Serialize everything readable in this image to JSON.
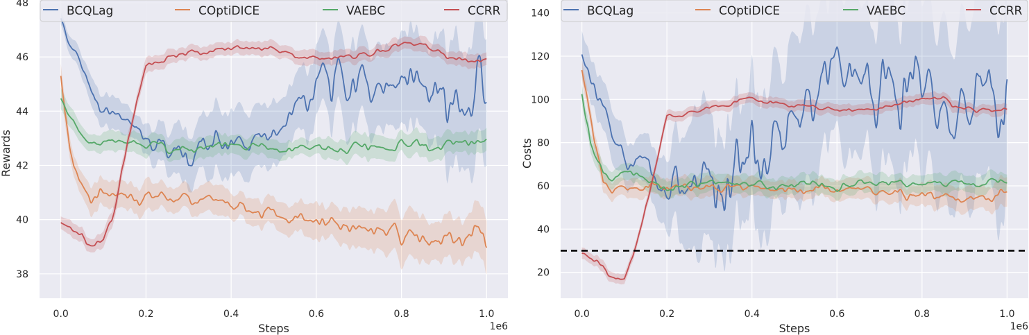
{
  "chart_data": [
    {
      "type": "line",
      "xlabel": "Steps",
      "ylabel": "Rewards",
      "x_offset_label": "1e6",
      "xlim": [
        -0.05,
        1.05
      ],
      "ylim": [
        37.1,
        48.1
      ],
      "xticks": [
        0.0,
        0.2,
        0.4,
        0.6,
        0.8,
        1.0
      ],
      "xtick_labels": [
        "0.0",
        "0.2",
        "0.4",
        "0.6",
        "0.8",
        "1.0"
      ],
      "yticks": [
        38,
        40,
        42,
        44,
        46,
        48
      ],
      "ytick_labels": [
        "38",
        "40",
        "42",
        "44",
        "46",
        "48"
      ],
      "grid": true,
      "legend_position": "top",
      "series": [
        {
          "name": "BCQLag",
          "color": "#4c72b0",
          "x": [
            0.0,
            0.02,
            0.04,
            0.06,
            0.08,
            0.1,
            0.12,
            0.14,
            0.16,
            0.2,
            0.25,
            0.3,
            0.35,
            0.4,
            0.45,
            0.5,
            0.55,
            0.58,
            0.6,
            0.65,
            0.7,
            0.75,
            0.8,
            0.85,
            0.9,
            0.95,
            1.0
          ],
          "y": [
            47.4,
            46.5,
            45.9,
            45.2,
            44.3,
            43.9,
            43.7,
            43.7,
            43.5,
            42.9,
            42.6,
            42.5,
            42.8,
            43.0,
            42.9,
            43.3,
            44.4,
            44.8,
            45.2,
            45.3,
            45.2,
            45.0,
            45.0,
            45.1,
            44.8,
            44.7,
            44.8
          ],
          "band": [
            0.3,
            0.4,
            0.5,
            0.6,
            0.7,
            0.7,
            0.7,
            0.6,
            0.6,
            0.6,
            0.9,
            1.1,
            1.3,
            1.3,
            1.4,
            1.4,
            1.4,
            1.6,
            1.8,
            1.8,
            1.8,
            1.7,
            1.8,
            2.0,
            2.5,
            2.8,
            3.2
          ]
        },
        {
          "name": "COptiDICE",
          "color": "#dd8452",
          "x": [
            0.0,
            0.01,
            0.02,
            0.03,
            0.05,
            0.07,
            0.1,
            0.15,
            0.2,
            0.25,
            0.3,
            0.35,
            0.4,
            0.45,
            0.5,
            0.55,
            0.6,
            0.65,
            0.7,
            0.75,
            0.8,
            0.85,
            0.9,
            0.95,
            1.0
          ],
          "y": [
            45.5,
            44.0,
            42.8,
            41.9,
            41.2,
            40.7,
            40.9,
            40.8,
            40.8,
            40.9,
            40.8,
            40.7,
            40.5,
            40.4,
            40.2,
            40.0,
            39.9,
            39.9,
            39.8,
            39.6,
            39.4,
            39.5,
            39.3,
            39.4,
            39.5
          ],
          "band": [
            0.5,
            0.5,
            0.5,
            0.5,
            0.5,
            0.6,
            0.7,
            0.7,
            0.6,
            0.6,
            0.6,
            0.6,
            0.6,
            0.6,
            0.7,
            0.7,
            0.7,
            0.8,
            0.8,
            0.9,
            1.0,
            0.9,
            1.0,
            1.0,
            1.0
          ]
        },
        {
          "name": "VAEBC",
          "color": "#55a868",
          "x": [
            0.0,
            0.02,
            0.04,
            0.06,
            0.08,
            0.1,
            0.15,
            0.2,
            0.3,
            0.4,
            0.5,
            0.6,
            0.7,
            0.8,
            0.9,
            1.0
          ],
          "y": [
            44.5,
            43.8,
            43.3,
            43.0,
            42.9,
            42.9,
            42.9,
            42.7,
            42.6,
            42.7,
            42.6,
            42.6,
            42.7,
            42.7,
            42.7,
            42.9
          ],
          "band": [
            0.4,
            0.4,
            0.4,
            0.4,
            0.4,
            0.4,
            0.4,
            0.4,
            0.4,
            0.4,
            0.4,
            0.4,
            0.5,
            0.5,
            0.5,
            0.5
          ]
        },
        {
          "name": "CCRR",
          "color": "#c44e52",
          "x": [
            0.0,
            0.02,
            0.04,
            0.05,
            0.06,
            0.08,
            0.1,
            0.12,
            0.14,
            0.16,
            0.18,
            0.2,
            0.25,
            0.3,
            0.35,
            0.4,
            0.45,
            0.5,
            0.55,
            0.6,
            0.65,
            0.7,
            0.75,
            0.8,
            0.85,
            0.9,
            0.95,
            1.0
          ],
          "y": [
            40.0,
            39.7,
            39.6,
            39.5,
            39.1,
            39.1,
            39.2,
            40.0,
            41.5,
            43.0,
            44.5,
            45.6,
            45.9,
            46.1,
            46.2,
            46.4,
            46.4,
            46.3,
            46.0,
            45.9,
            46.0,
            46.1,
            46.2,
            46.4,
            46.5,
            46.0,
            45.9,
            45.9
          ],
          "band": [
            0.3,
            0.3,
            0.3,
            0.3,
            0.3,
            0.3,
            0.3,
            0.3,
            0.3,
            0.3,
            0.3,
            0.3,
            0.3,
            0.3,
            0.3,
            0.3,
            0.3,
            0.3,
            0.3,
            0.3,
            0.3,
            0.3,
            0.3,
            0.3,
            0.3,
            0.3,
            0.3,
            0.3
          ]
        }
      ]
    },
    {
      "type": "line",
      "xlabel": "Steps",
      "ylabel": "Costs",
      "x_offset_label": "1e6",
      "xlim": [
        -0.05,
        1.05
      ],
      "ylim": [
        8,
        146
      ],
      "xticks": [
        0.0,
        0.2,
        0.4,
        0.6,
        0.8,
        1.0
      ],
      "xtick_labels": [
        "0.0",
        "0.2",
        "0.4",
        "0.6",
        "0.8",
        "1.0"
      ],
      "yticks": [
        20,
        40,
        60,
        80,
        100,
        120,
        140
      ],
      "ytick_labels": [
        "20",
        "40",
        "60",
        "80",
        "100",
        "120",
        "140"
      ],
      "grid": true,
      "legend_position": "top",
      "threshold": {
        "y": 30,
        "style": "dashed",
        "color": "#000000"
      },
      "series": [
        {
          "name": "BCQLag",
          "color": "#4c72b0",
          "x": [
            0.0,
            0.02,
            0.04,
            0.06,
            0.08,
            0.1,
            0.12,
            0.15,
            0.2,
            0.25,
            0.3,
            0.35,
            0.4,
            0.45,
            0.5,
            0.55,
            0.6,
            0.65,
            0.7,
            0.75,
            0.8,
            0.85,
            0.9,
            0.95,
            1.0
          ],
          "y": [
            122,
            110,
            100,
            90,
            82,
            75,
            72,
            70,
            60,
            58,
            60,
            65,
            75,
            82,
            88,
            97,
            105,
            105,
            102,
            100,
            100,
            97,
            96,
            95,
            93
          ],
          "band": [
            12,
            12,
            12,
            12,
            12,
            12,
            12,
            12,
            20,
            35,
            40,
            35,
            35,
            38,
            40,
            42,
            42,
            42,
            42,
            42,
            45,
            45,
            47,
            48,
            50
          ]
        },
        {
          "name": "COptiDICE",
          "color": "#dd8452",
          "x": [
            0.0,
            0.01,
            0.02,
            0.03,
            0.05,
            0.07,
            0.1,
            0.15,
            0.2,
            0.3,
            0.4,
            0.5,
            0.6,
            0.7,
            0.8,
            0.9,
            1.0
          ],
          "y": [
            115,
            105,
            92,
            80,
            62,
            57,
            59,
            60,
            60,
            59,
            59,
            58,
            59,
            57,
            55,
            55,
            55
          ],
          "band": [
            5,
            5,
            5,
            5,
            5,
            5,
            5,
            5,
            5,
            5,
            5,
            5,
            5,
            5,
            6,
            7,
            8
          ]
        },
        {
          "name": "VAEBC",
          "color": "#55a868",
          "x": [
            0.0,
            0.01,
            0.02,
            0.03,
            0.05,
            0.07,
            0.1,
            0.15,
            0.2,
            0.3,
            0.4,
            0.5,
            0.6,
            0.7,
            0.8,
            0.9,
            1.0
          ],
          "y": [
            102,
            90,
            80,
            76,
            68,
            63,
            65,
            63,
            60,
            61,
            61,
            60,
            60,
            61,
            61,
            61,
            62
          ],
          "band": [
            5,
            5,
            5,
            5,
            5,
            5,
            5,
            5,
            5,
            5,
            5,
            5,
            5,
            5,
            5,
            5,
            5
          ]
        },
        {
          "name": "CCRR",
          "color": "#c44e52",
          "x": [
            0.0,
            0.02,
            0.04,
            0.05,
            0.06,
            0.08,
            0.1,
            0.12,
            0.14,
            0.16,
            0.18,
            0.2,
            0.25,
            0.3,
            0.35,
            0.4,
            0.5,
            0.6,
            0.7,
            0.8,
            0.85,
            0.9,
            1.0
          ],
          "y": [
            29,
            26,
            24,
            22,
            18,
            17,
            17,
            27,
            42,
            58,
            75,
            92,
            94,
            96,
            98,
            100,
            97,
            95,
            95,
            100,
            100,
            95,
            96
          ],
          "band": [
            3,
            3,
            3,
            3,
            3,
            3,
            3,
            3,
            3,
            3,
            3,
            3,
            3,
            3,
            3,
            3,
            3,
            3,
            3,
            3,
            3,
            3,
            3
          ]
        }
      ]
    }
  ]
}
